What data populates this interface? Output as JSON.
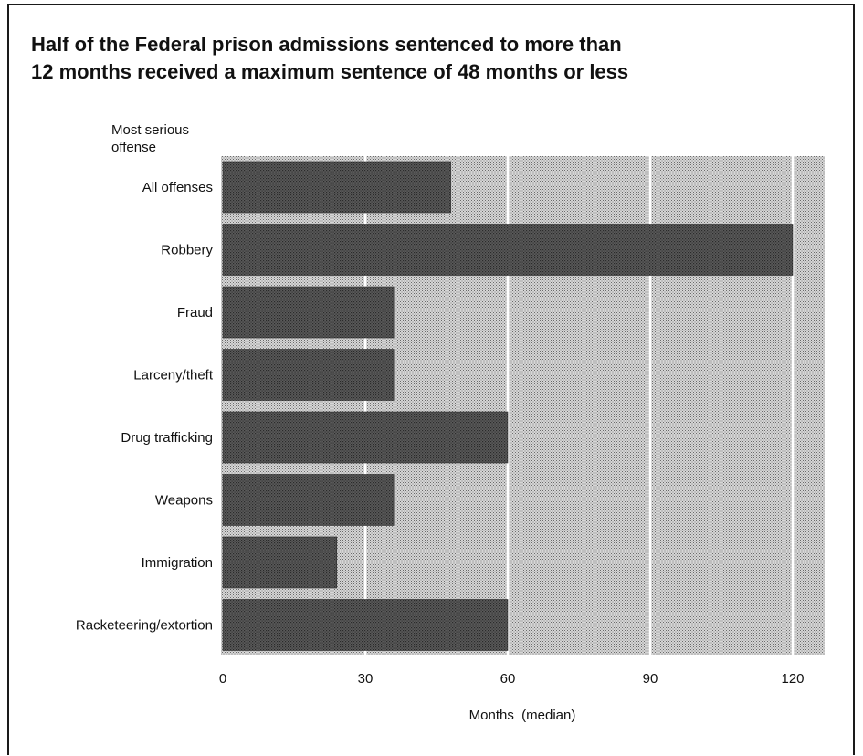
{
  "chart_data": {
    "type": "bar",
    "orientation": "horizontal",
    "title_lines": [
      "Half of the Federal prison admissions sentenced to more than",
      "12 months received a maximum sentence of 48 months or less"
    ],
    "ylabel_lines": [
      "Most serious",
      "offense"
    ],
    "xlabel": "Months  (median)",
    "categories": [
      "All offenses",
      "Robbery",
      "Fraud",
      "Larceny/theft",
      "Drug trafficking",
      "Weapons",
      "Immigration",
      "Racketeering/extortion"
    ],
    "values": [
      48,
      120,
      36,
      36,
      60,
      36,
      24,
      60
    ],
    "xlim": [
      0,
      128
    ],
    "xticks": [
      0,
      30,
      60,
      90,
      120
    ],
    "grid": true,
    "colors": {
      "bar": "#4a4a4a",
      "background": "#c4c4c4",
      "gridline": "#ffffff",
      "text": "#111111"
    }
  }
}
